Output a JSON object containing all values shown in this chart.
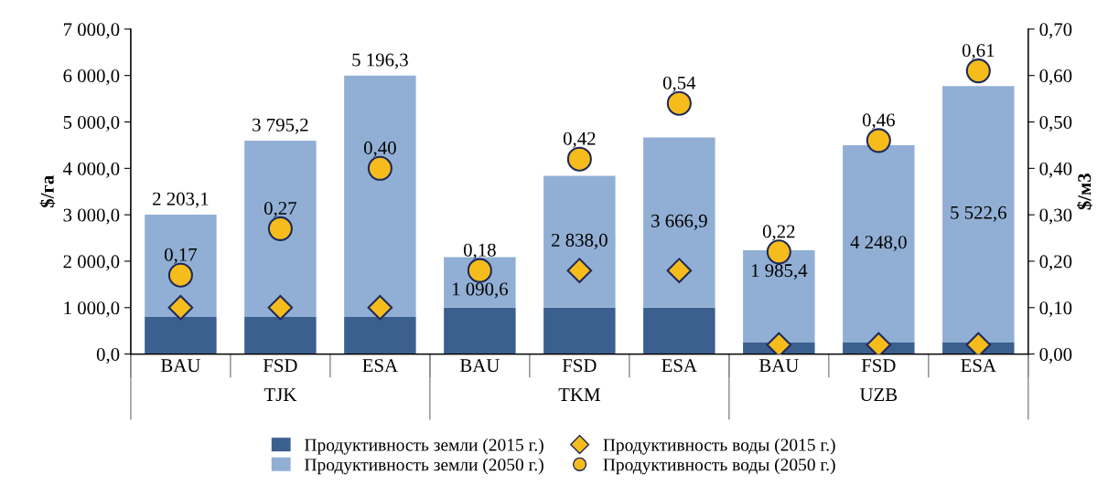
{
  "chart_data": {
    "type": "bar",
    "stacked": true,
    "categories": [
      "BAU",
      "FSD",
      "ESA",
      "BAU",
      "FSD",
      "ESA",
      "BAU",
      "FSD",
      "ESA"
    ],
    "annotations": [
      "TJK",
      "TKM",
      "UZB"
    ],
    "ylabel": "$/га",
    "y2label": "$/м3",
    "ylim": [
      0,
      7000
    ],
    "yticks": [
      {
        "value": 0,
        "label": "0,0"
      },
      {
        "value": 1000,
        "label": "1 000,0"
      },
      {
        "value": 2000,
        "label": "2 000,0"
      },
      {
        "value": 3000,
        "label": "3 000,0"
      },
      {
        "value": 4000,
        "label": "4 000,0"
      },
      {
        "value": 5000,
        "label": "5 000,0"
      },
      {
        "value": 6000,
        "label": "6 000,0"
      },
      {
        "value": 7000,
        "label": "7 000,0"
      }
    ],
    "y2lim": [
      0,
      0.7
    ],
    "y2ticks": [
      {
        "value": 0,
        "label": "0,00"
      },
      {
        "value": 0.1,
        "label": "0,10"
      },
      {
        "value": 0.2,
        "label": "0,20"
      },
      {
        "value": 0.3,
        "label": "0,30"
      },
      {
        "value": 0.4,
        "label": "0,40"
      },
      {
        "value": 0.5,
        "label": "0,50"
      },
      {
        "value": 0.6,
        "label": "0,60"
      },
      {
        "value": 0.7,
        "label": "0,70"
      }
    ],
    "grid": false,
    "legend": "bottom",
    "series": [
      {
        "name": "Продуктивность земли (2015 г.)",
        "color": "#3b5f8f",
        "values": [
          800,
          800,
          800,
          1000,
          1000,
          1000,
          250,
          250,
          250
        ]
      },
      {
        "name": "Продуктивность земли (2050 г.)",
        "color": "#91afd4",
        "values": [
          2203.1,
          3795.2,
          5196.3,
          1090.6,
          2838.0,
          3666.9,
          1985.4,
          4248.0,
          5522.6
        ],
        "value_labels": [
          "2 203,1",
          "3 795,2",
          "5 196,3",
          "1 090,6",
          "2 838,0",
          "3 666,9",
          "1 985,4",
          "4 248,0",
          "5 522,6"
        ]
      },
      {
        "name": "Продуктивность воды (2015 г.)",
        "type": "scatter",
        "axis": "y2",
        "marker": "diamond",
        "color": "#f5bc1c",
        "values": [
          0.1,
          0.1,
          0.1,
          null,
          0.18,
          0.18,
          0.02,
          0.02,
          0.02
        ]
      },
      {
        "name": "Продуктивность воды (2050 г.)",
        "type": "scatter",
        "axis": "y2",
        "marker": "circle",
        "color": "#f5bc1c",
        "values": [
          0.17,
          0.27,
          0.4,
          0.18,
          0.42,
          0.54,
          0.22,
          0.46,
          0.61
        ],
        "value_labels": [
          "0,17",
          "0,27",
          "0,40",
          "0,18",
          "0,42",
          "0,54",
          "0,22",
          "0,46",
          "0,61"
        ]
      }
    ]
  }
}
